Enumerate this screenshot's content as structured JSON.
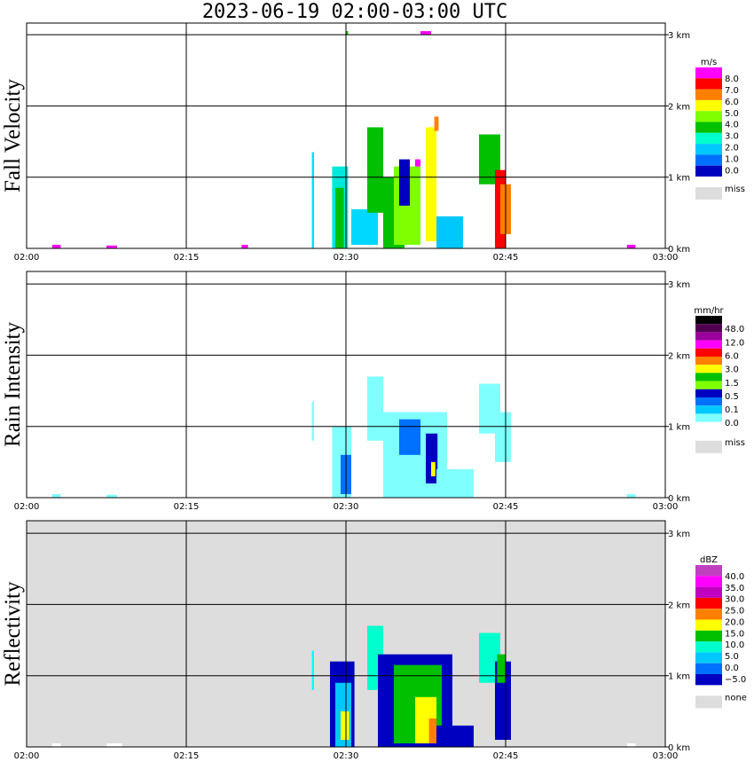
{
  "title": "2023-06-19   02:00-03:00 UTC",
  "x_ticks": [
    "02:00",
    "02:15",
    "02:30",
    "02:45",
    "03:00"
  ],
  "y_ticks": [
    "0 km",
    "1 km",
    "2 km",
    "3 km"
  ],
  "chart_data": [
    {
      "type": "heatmap",
      "ylabel": "Fall Velocity",
      "xlim": [
        "02:00",
        "03:00"
      ],
      "ylim_km": [
        0,
        3
      ],
      "background": "#ffffff",
      "colorbar": {
        "unit": "m/s",
        "labels": [
          "8.0",
          "7.0",
          "6.0",
          "5.0",
          "4.0",
          "3.0",
          "2.0",
          "1.0",
          "0.0"
        ],
        "colors": [
          "#ff00ff",
          "#ff0000",
          "#ff7f00",
          "#ffff00",
          "#7fff00",
          "#00c000",
          "#00ffcc",
          "#00c8ff",
          "#0070ff",
          "#0000c0"
        ],
        "missing_label": "miss",
        "missing_color": "#dddddd"
      },
      "echoes": [
        {
          "t0": 26.8,
          "t1": 27.0,
          "h0": 0.0,
          "h1": 1.35,
          "color": "#00e0ff"
        },
        {
          "t0": 28.7,
          "t1": 30.2,
          "h0": 0.0,
          "h1": 1.15,
          "color": "#00e8d8"
        },
        {
          "t0": 29.0,
          "t1": 29.8,
          "h0": 0.0,
          "h1": 0.85,
          "color": "#00c000"
        },
        {
          "t0": 30.5,
          "t1": 33.0,
          "h0": 0.05,
          "h1": 0.55,
          "color": "#00d8ff"
        },
        {
          "t0": 32.0,
          "t1": 33.5,
          "h0": 0.5,
          "h1": 1.7,
          "color": "#00c000"
        },
        {
          "t0": 33.5,
          "t1": 35.5,
          "h0": 0.0,
          "h1": 1.0,
          "color": "#00c000"
        },
        {
          "t0": 34.5,
          "t1": 37.0,
          "h0": 0.05,
          "h1": 1.15,
          "color": "#7fff00"
        },
        {
          "t0": 35.0,
          "t1": 36.0,
          "h0": 0.6,
          "h1": 1.25,
          "color": "#0000c0"
        },
        {
          "t0": 37.5,
          "t1": 38.5,
          "h0": 0.1,
          "h1": 1.7,
          "color": "#ffff00"
        },
        {
          "t0": 38.3,
          "t1": 38.7,
          "h0": 1.65,
          "h1": 1.85,
          "color": "#ff7f00"
        },
        {
          "t0": 36.5,
          "t1": 37.0,
          "h0": 1.15,
          "h1": 1.25,
          "color": "#ff00ff"
        },
        {
          "t0": 38.5,
          "t1": 41.0,
          "h0": 0.0,
          "h1": 0.45,
          "color": "#00c8ff"
        },
        {
          "t0": 42.5,
          "t1": 44.5,
          "h0": 0.9,
          "h1": 1.6,
          "color": "#00c000"
        },
        {
          "t0": 44.0,
          "t1": 45.0,
          "h0": 0.0,
          "h1": 1.1,
          "color": "#ff0000"
        },
        {
          "t0": 44.5,
          "t1": 45.5,
          "h0": 0.2,
          "h1": 0.9,
          "color": "#ff7f00"
        },
        {
          "t0": 2.4,
          "t1": 3.2,
          "h0": 0.0,
          "h1": 0.05,
          "color": "#ff00ff"
        },
        {
          "t0": 7.5,
          "t1": 8.5,
          "h0": 0.0,
          "h1": 0.04,
          "color": "#ff00ff"
        },
        {
          "t0": 20.2,
          "t1": 20.8,
          "h0": 0.0,
          "h1": 0.05,
          "color": "#ff00ff"
        },
        {
          "t0": 56.4,
          "t1": 57.2,
          "h0": 0.0,
          "h1": 0.05,
          "color": "#ff00ff"
        },
        {
          "t0": 30.0,
          "t1": 30.2,
          "h0": 3.0,
          "h1": 3.05,
          "color": "#00c000"
        },
        {
          "t0": 37.0,
          "t1": 38.0,
          "h0": 3.0,
          "h1": 3.05,
          "color": "#ff00ff"
        }
      ]
    },
    {
      "type": "heatmap",
      "ylabel": "Rain Intensity",
      "xlim": [
        "02:00",
        "03:00"
      ],
      "ylim_km": [
        0,
        3
      ],
      "background": "#ffffff",
      "colorbar": {
        "unit": "mm/hr",
        "labels": [
          "48.0",
          "12.0",
          "6.0",
          "3.0",
          "1.5",
          "0.5",
          "0.1",
          "0.0"
        ],
        "colors": [
          "#000000",
          "#500050",
          "#9a009a",
          "#ff00ff",
          "#ff0000",
          "#ff7f00",
          "#ffff00",
          "#00c000",
          "#7fff00",
          "#0000c0",
          "#0070ff",
          "#00c8ff",
          "#80ffff",
          "#ffffff"
        ],
        "missing_label": "miss",
        "missing_color": "#dddddd"
      },
      "echoes": [
        {
          "t0": 26.8,
          "t1": 27.0,
          "h0": 0.8,
          "h1": 1.35,
          "color": "#80ffff"
        },
        {
          "t0": 28.7,
          "t1": 30.5,
          "h0": 0.0,
          "h1": 1.0,
          "color": "#80ffff"
        },
        {
          "t0": 29.5,
          "t1": 30.5,
          "h0": 0.05,
          "h1": 0.6,
          "color": "#0070ff"
        },
        {
          "t0": 32.0,
          "t1": 33.5,
          "h0": 0.8,
          "h1": 1.7,
          "color": "#80ffff"
        },
        {
          "t0": 33.5,
          "t1": 39.5,
          "h0": 0.0,
          "h1": 1.2,
          "color": "#80ffff"
        },
        {
          "t0": 35.0,
          "t1": 37.0,
          "h0": 0.6,
          "h1": 1.1,
          "color": "#0070ff"
        },
        {
          "t0": 37.5,
          "t1": 38.6,
          "h0": 0.2,
          "h1": 0.9,
          "color": "#0000c0"
        },
        {
          "t0": 38.0,
          "t1": 38.4,
          "h0": 0.3,
          "h1": 0.5,
          "color": "#ffff00"
        },
        {
          "t0": 38.5,
          "t1": 42.0,
          "h0": 0.0,
          "h1": 0.4,
          "color": "#80ffff"
        },
        {
          "t0": 42.5,
          "t1": 44.5,
          "h0": 0.9,
          "h1": 1.6,
          "color": "#80ffff"
        },
        {
          "t0": 44.0,
          "t1": 45.5,
          "h0": 0.5,
          "h1": 1.2,
          "color": "#80ffff"
        },
        {
          "t0": 2.4,
          "t1": 3.2,
          "h0": 0.0,
          "h1": 0.05,
          "color": "#80ffff"
        },
        {
          "t0": 7.5,
          "t1": 8.5,
          "h0": 0.0,
          "h1": 0.04,
          "color": "#80ffff"
        },
        {
          "t0": 56.4,
          "t1": 57.2,
          "h0": 0.0,
          "h1": 0.05,
          "color": "#80ffff"
        }
      ]
    },
    {
      "type": "heatmap",
      "ylabel": "Reflectivity",
      "xlim": [
        "02:00",
        "03:00"
      ],
      "ylim_km": [
        0,
        3
      ],
      "background": "#dddddd",
      "colorbar": {
        "unit": "dBZ",
        "labels": [
          "40.0",
          "35.0",
          "30.0",
          "25.0",
          "20.0",
          "15.0",
          "10.0",
          "5.0",
          "0.0",
          "−5.0"
        ],
        "colors": [
          "#c040c0",
          "#ff00ff",
          "#c000c0",
          "#ff0000",
          "#ff7f00",
          "#ffff00",
          "#00c000",
          "#00ffcc",
          "#00c8ff",
          "#0070ff",
          "#0000c0"
        ],
        "missing_label": "none",
        "missing_color": "#dddddd"
      },
      "echoes": [
        {
          "t0": 26.8,
          "t1": 27.0,
          "h0": 0.8,
          "h1": 1.35,
          "color": "#00ffff"
        },
        {
          "t0": 28.5,
          "t1": 30.8,
          "h0": 0.0,
          "h1": 1.2,
          "color": "#0000c0"
        },
        {
          "t0": 29.0,
          "t1": 30.5,
          "h0": 0.0,
          "h1": 0.9,
          "color": "#00c8ff"
        },
        {
          "t0": 29.5,
          "t1": 30.3,
          "h0": 0.1,
          "h1": 0.5,
          "color": "#ffff00"
        },
        {
          "t0": 32.0,
          "t1": 33.5,
          "h0": 0.8,
          "h1": 1.7,
          "color": "#00ffcc"
        },
        {
          "t0": 33.0,
          "t1": 40.0,
          "h0": 0.0,
          "h1": 1.3,
          "color": "#0000c0"
        },
        {
          "t0": 34.5,
          "t1": 39.0,
          "h0": 0.05,
          "h1": 1.15,
          "color": "#00c000"
        },
        {
          "t0": 36.5,
          "t1": 38.5,
          "h0": 0.05,
          "h1": 0.7,
          "color": "#ffff00"
        },
        {
          "t0": 37.8,
          "t1": 38.5,
          "h0": 0.05,
          "h1": 0.4,
          "color": "#ff7f00"
        },
        {
          "t0": 38.5,
          "t1": 42.0,
          "h0": 0.0,
          "h1": 0.3,
          "color": "#0000c0"
        },
        {
          "t0": 42.5,
          "t1": 44.5,
          "h0": 0.9,
          "h1": 1.6,
          "color": "#00ffcc"
        },
        {
          "t0": 44.0,
          "t1": 45.5,
          "h0": 0.1,
          "h1": 1.2,
          "color": "#0000c0"
        },
        {
          "t0": 44.2,
          "t1": 45.0,
          "h0": 0.9,
          "h1": 1.3,
          "color": "#00c000"
        },
        {
          "t0": 2.4,
          "t1": 3.2,
          "h0": 0.0,
          "h1": 0.05,
          "color": "#ffffff"
        },
        {
          "t0": 7.5,
          "t1": 9.0,
          "h0": 0.0,
          "h1": 0.05,
          "color": "#ffffff"
        },
        {
          "t0": 56.4,
          "t1": 57.2,
          "h0": 0.0,
          "h1": 0.05,
          "color": "#ffffff"
        }
      ]
    }
  ]
}
